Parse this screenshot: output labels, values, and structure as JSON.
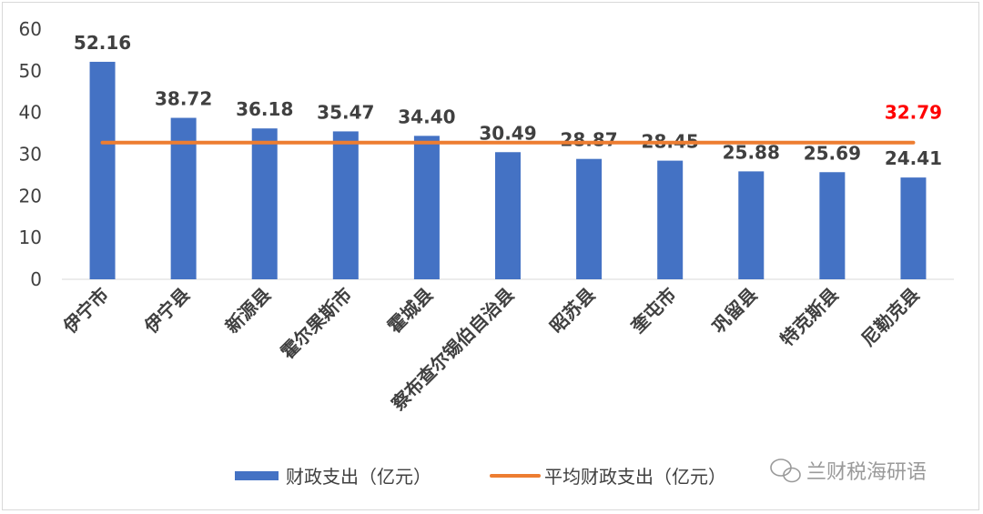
{
  "chart_data": {
    "type": "bar",
    "categories": [
      "伊宁市",
      "伊宁县",
      "新源县",
      "霍尔果斯市",
      "霍城县",
      "察布查尔锡伯自治县",
      "昭苏县",
      "奎屯市",
      "巩留县",
      "特克斯县",
      "尼勒克县"
    ],
    "series": [
      {
        "name": "财政支出（亿元）",
        "type": "bar",
        "color": "#4472C4",
        "values": [
          52.16,
          38.72,
          36.18,
          35.47,
          34.4,
          30.49,
          28.87,
          28.45,
          25.88,
          25.69,
          24.41
        ],
        "labels": [
          "52.16",
          "38.72",
          "36.18",
          "35.47",
          "34.40",
          "30.49",
          "28.87",
          "28.45",
          "25.88",
          "25.69",
          "24.41"
        ]
      },
      {
        "name": "平均财政支出（亿元）",
        "type": "line",
        "color": "#ED7D31",
        "values": [
          32.79,
          32.79,
          32.79,
          32.79,
          32.79,
          32.79,
          32.79,
          32.79,
          32.79,
          32.79,
          32.79
        ],
        "label": "32.79",
        "label_color": "#FF0000"
      }
    ],
    "ylim": [
      0,
      60
    ],
    "yticks": [
      "0",
      "10",
      "20",
      "30",
      "40",
      "50",
      "60"
    ],
    "grid": false,
    "legend_position": "bottom"
  },
  "watermark": {
    "text": "兰财税海研语",
    "icon": "wechat-icon"
  }
}
